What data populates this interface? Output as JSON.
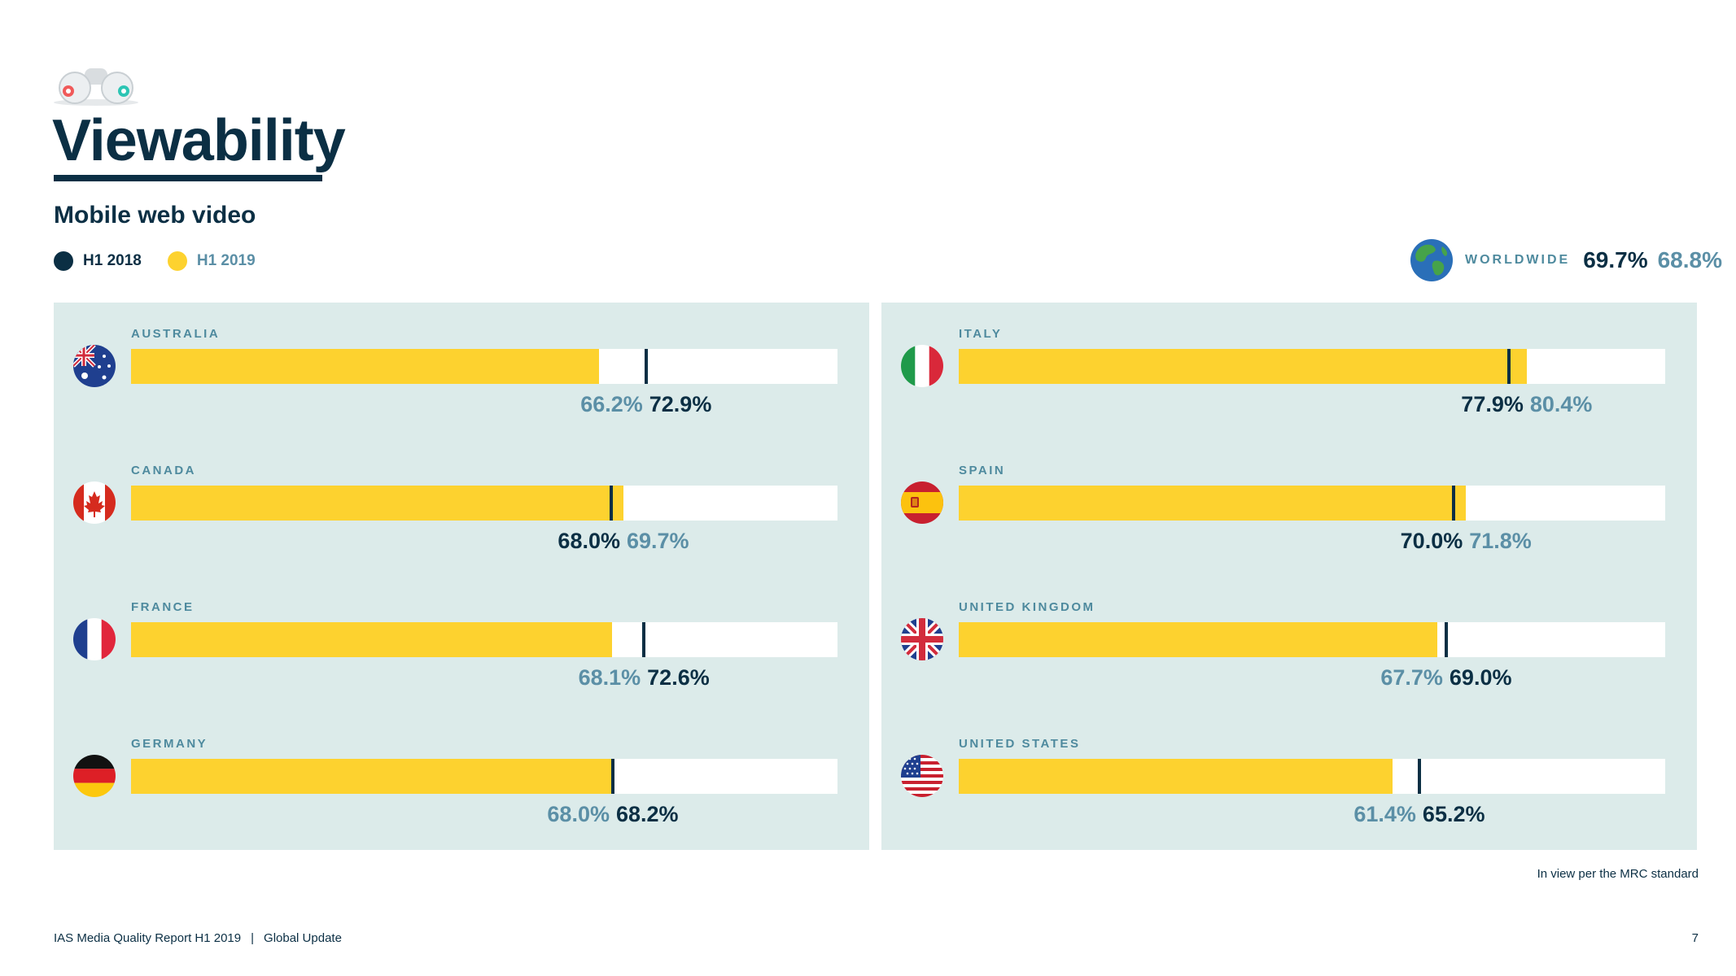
{
  "page": {
    "title": "Viewability",
    "subtitle": "Mobile web video",
    "note": "In view per the MRC standard",
    "footer_report": "IAS Media Quality Report H1 2019",
    "footer_separator": "|",
    "footer_section": "Global Update",
    "page_number": "7"
  },
  "legend": [
    {
      "label": "H1 2018",
      "color": "#0b2f44"
    },
    {
      "label": "H1 2019",
      "color": "#fdd22f"
    }
  ],
  "worldwide": {
    "label": "WORLDWIDE",
    "h1_2018": "69.7%",
    "h1_2019": "68.8%"
  },
  "chart_data": {
    "type": "bar",
    "title": "Viewability",
    "subtitle": "Mobile web video",
    "xlim": [
      0,
      100
    ],
    "series": [
      {
        "name": "H1 2018",
        "color": "#0b2f44",
        "display": "marker"
      },
      {
        "name": "H1 2019",
        "color": "#fdd22f",
        "display": "bar"
      }
    ],
    "categories": [
      "AUSTRALIA",
      "CANADA",
      "FRANCE",
      "GERMANY",
      "ITALY",
      "SPAIN",
      "UNITED KINGDOM",
      "UNITED STATES"
    ],
    "countries": [
      {
        "name": "AUSTRALIA",
        "flag": "australia-flag-icon",
        "h1_2018": 72.9,
        "h1_2019": 66.2,
        "h1_2018_label": "72.9%",
        "h1_2019_label": "66.2%"
      },
      {
        "name": "CANADA",
        "flag": "canada-flag-icon",
        "h1_2018": 68.0,
        "h1_2019": 69.7,
        "h1_2018_label": "68.0%",
        "h1_2019_label": "69.7%"
      },
      {
        "name": "FRANCE",
        "flag": "france-flag-icon",
        "h1_2018": 72.6,
        "h1_2019": 68.1,
        "h1_2018_label": "72.6%",
        "h1_2019_label": "68.1%"
      },
      {
        "name": "GERMANY",
        "flag": "germany-flag-icon",
        "h1_2018": 68.2,
        "h1_2019": 68.0,
        "h1_2018_label": "68.2%",
        "h1_2019_label": "68.0%"
      },
      {
        "name": "ITALY",
        "flag": "italy-flag-icon",
        "h1_2018": 77.9,
        "h1_2019": 80.4,
        "h1_2018_label": "77.9%",
        "h1_2019_label": "80.4%"
      },
      {
        "name": "SPAIN",
        "flag": "spain-flag-icon",
        "h1_2018": 70.0,
        "h1_2019": 71.8,
        "h1_2018_label": "70.0%",
        "h1_2019_label": "71.8%"
      },
      {
        "name": "UNITED KINGDOM",
        "flag": "uk-flag-icon",
        "h1_2018": 69.0,
        "h1_2019": 67.7,
        "h1_2018_label": "69.0%",
        "h1_2019_label": "67.7%"
      },
      {
        "name": "UNITED STATES",
        "flag": "us-flag-icon",
        "h1_2018": 65.2,
        "h1_2019": 61.4,
        "h1_2018_label": "65.2%",
        "h1_2019_label": "61.4%"
      }
    ]
  }
}
